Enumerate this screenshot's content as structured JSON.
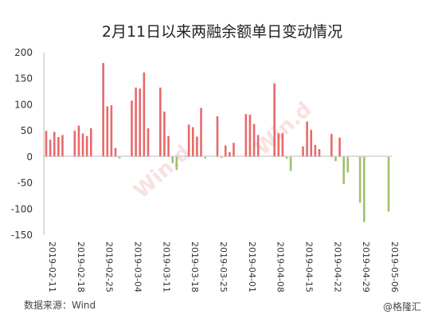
{
  "chart_data": {
    "type": "bar",
    "title": "2月11日以来两融余额单日变动情况",
    "ylim": [
      -150,
      200
    ],
    "yticks": [
      200,
      150,
      100,
      50,
      0,
      -50,
      -100,
      -150
    ],
    "x_tick_labels": [
      "2019-02-11",
      "2019-02-18",
      "2019-02-25",
      "2019-03-04",
      "2019-03-11",
      "2019-03-18",
      "2019-03-25",
      "2019-04-01",
      "2019-04-08",
      "2019-04-15",
      "2019-04-22",
      "2019-04-29",
      "2019-05-06"
    ],
    "x": [
      "2019-02-11",
      "2019-02-12",
      "2019-02-13",
      "2019-02-14",
      "2019-02-15",
      "2019-02-18",
      "2019-02-19",
      "2019-02-20",
      "2019-02-21",
      "2019-02-22",
      "2019-02-25",
      "2019-02-26",
      "2019-02-27",
      "2019-02-28",
      "2019-03-01",
      "2019-03-04",
      "2019-03-05",
      "2019-03-06",
      "2019-03-07",
      "2019-03-08",
      "2019-03-11",
      "2019-03-12",
      "2019-03-13",
      "2019-03-14",
      "2019-03-15",
      "2019-03-18",
      "2019-03-19",
      "2019-03-20",
      "2019-03-21",
      "2019-03-22",
      "2019-03-25",
      "2019-03-26",
      "2019-03-27",
      "2019-03-28",
      "2019-03-29",
      "2019-04-01",
      "2019-04-02",
      "2019-04-03",
      "2019-04-04",
      "2019-04-08",
      "2019-04-09",
      "2019-04-10",
      "2019-04-11",
      "2019-04-12",
      "2019-04-15",
      "2019-04-16",
      "2019-04-17",
      "2019-04-18",
      "2019-04-19",
      "2019-04-22",
      "2019-04-23",
      "2019-04-24",
      "2019-04-25",
      "2019-04-26",
      "2019-04-29",
      "2019-04-30",
      "2019-05-06"
    ],
    "values": [
      50,
      33,
      48,
      38,
      42,
      50,
      60,
      45,
      40,
      55,
      180,
      97,
      99,
      17,
      -3,
      108,
      133,
      131,
      162,
      55,
      133,
      87,
      40,
      -12,
      -25,
      62,
      57,
      39,
      94,
      -3,
      78,
      -2,
      22,
      9,
      27,
      82,
      81,
      63,
      42,
      141,
      45,
      46,
      -3,
      -27,
      20,
      68,
      52,
      23,
      15,
      44,
      -8,
      37,
      -52,
      -30,
      -88,
      -125,
      -105
    ],
    "colors": {
      "positive": "#e8696b",
      "negative": "#9fc16a"
    },
    "grid": false
  },
  "watermark": "Win.d",
  "source": "数据来源：Wind",
  "logo": "@格隆汇"
}
